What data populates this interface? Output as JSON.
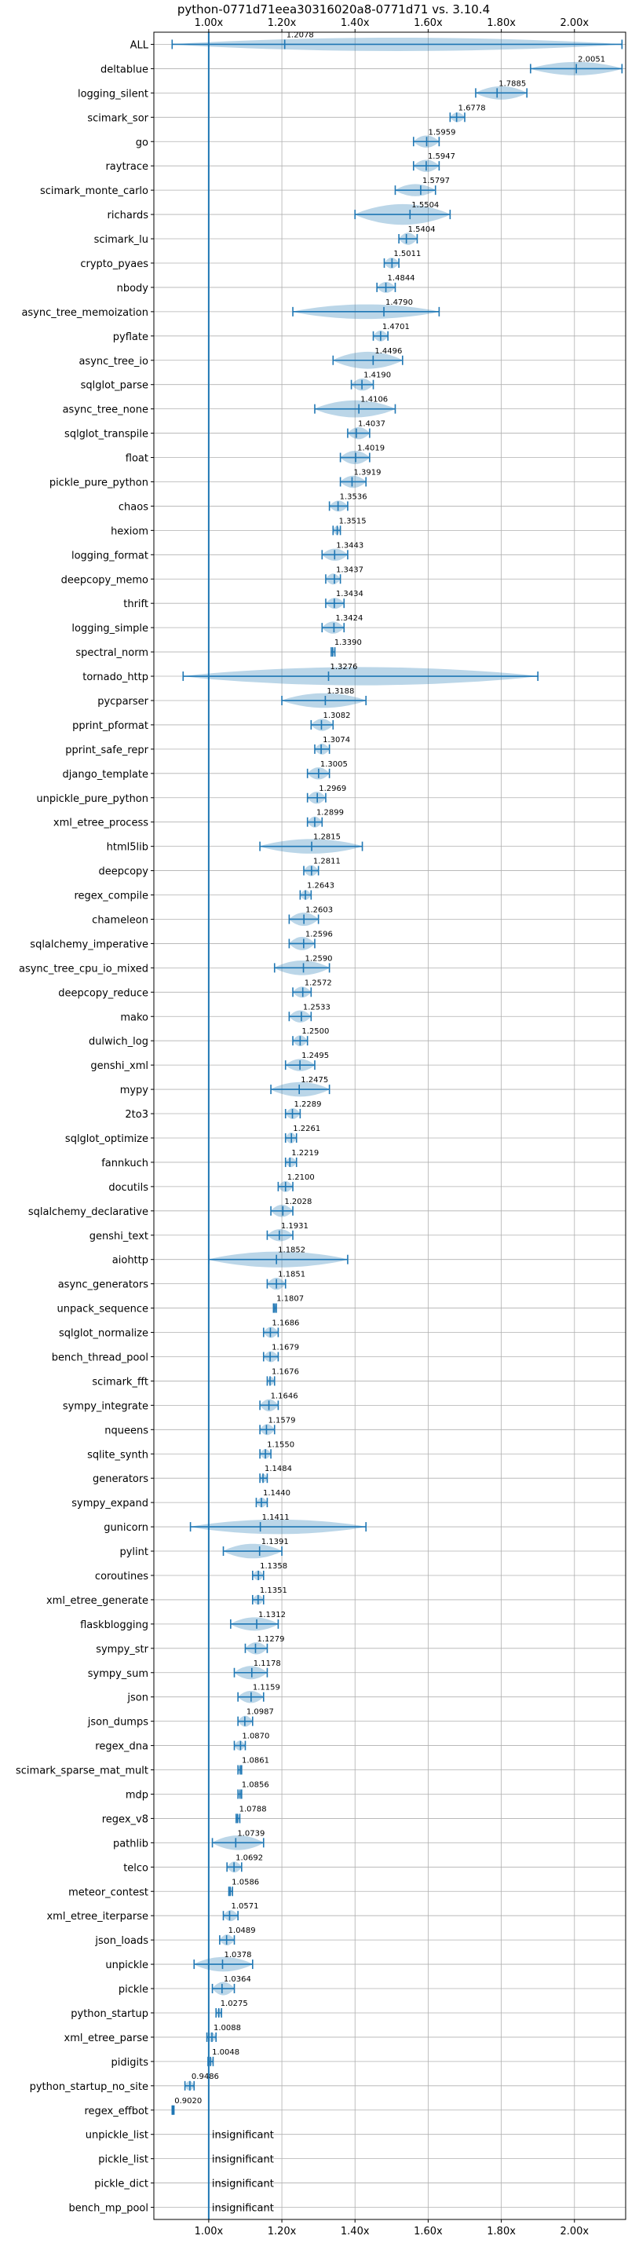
{
  "chart_data": {
    "type": "violin",
    "title": "python-0771d71eea30316020a8-0771d71 vs. 3.10.4",
    "xlim": [
      0.85,
      2.14
    ],
    "x_ticks": [
      1.0,
      1.2,
      1.4,
      1.6,
      1.8,
      2.0
    ],
    "x_tick_labels": [
      "1.00x",
      "1.20x",
      "1.40x",
      "1.60x",
      "1.80x",
      "2.00x"
    ],
    "x_ticks_top_and_bottom": true,
    "reference_line": 1.0,
    "grid": true,
    "color": "#1f77b4",
    "benchmarks": [
      {
        "name": "ALL",
        "value": 1.2078,
        "label": "1.2078",
        "min": 0.9,
        "max": 2.13,
        "width": 0.55
      },
      {
        "name": "deltablue",
        "value": 2.0051,
        "label": "2.0051",
        "min": 1.88,
        "max": 2.13,
        "width": 0.55
      },
      {
        "name": "logging_silent",
        "value": 1.7885,
        "label": "1.7885",
        "min": 1.73,
        "max": 1.87,
        "width": 0.55
      },
      {
        "name": "scimark_sor",
        "value": 1.6778,
        "label": "1.6778",
        "min": 1.66,
        "max": 1.7,
        "width": 0.4
      },
      {
        "name": "go",
        "value": 1.5959,
        "label": "1.5959",
        "min": 1.56,
        "max": 1.63,
        "width": 0.5
      },
      {
        "name": "raytrace",
        "value": 1.5947,
        "label": "1.5947",
        "min": 1.56,
        "max": 1.63,
        "width": 0.5
      },
      {
        "name": "scimark_monte_carlo",
        "value": 1.5797,
        "label": "1.5797",
        "min": 1.51,
        "max": 1.62,
        "width": 0.5
      },
      {
        "name": "richards",
        "value": 1.5504,
        "label": "1.5504",
        "min": 1.4,
        "max": 1.66,
        "width": 0.85
      },
      {
        "name": "scimark_lu",
        "value": 1.5404,
        "label": "1.5404",
        "min": 1.52,
        "max": 1.57,
        "width": 0.5
      },
      {
        "name": "crypto_pyaes",
        "value": 1.5011,
        "label": "1.5011",
        "min": 1.48,
        "max": 1.52,
        "width": 0.45
      },
      {
        "name": "nbody",
        "value": 1.4844,
        "label": "1.4844",
        "min": 1.46,
        "max": 1.51,
        "width": 0.45
      },
      {
        "name": "async_tree_memoization",
        "value": 1.479,
        "label": "1.4790",
        "min": 1.23,
        "max": 1.63,
        "width": 0.6
      },
      {
        "name": "pyflate",
        "value": 1.4701,
        "label": "1.4701",
        "min": 1.45,
        "max": 1.49,
        "width": 0.45
      },
      {
        "name": "async_tree_io",
        "value": 1.4496,
        "label": "1.4496",
        "min": 1.34,
        "max": 1.53,
        "width": 0.7
      },
      {
        "name": "sqlglot_parse",
        "value": 1.419,
        "label": "1.4190",
        "min": 1.39,
        "max": 1.45,
        "width": 0.5
      },
      {
        "name": "async_tree_none",
        "value": 1.4106,
        "label": "1.4106",
        "min": 1.29,
        "max": 1.51,
        "width": 0.7
      },
      {
        "name": "sqlglot_transpile",
        "value": 1.4037,
        "label": "1.4037",
        "min": 1.38,
        "max": 1.44,
        "width": 0.5
      },
      {
        "name": "float",
        "value": 1.4019,
        "label": "1.4019",
        "min": 1.36,
        "max": 1.44,
        "width": 0.55
      },
      {
        "name": "pickle_pure_python",
        "value": 1.3919,
        "label": "1.3919",
        "min": 1.36,
        "max": 1.43,
        "width": 0.5
      },
      {
        "name": "chaos",
        "value": 1.3536,
        "label": "1.3536",
        "min": 1.33,
        "max": 1.38,
        "width": 0.45
      },
      {
        "name": "hexiom",
        "value": 1.3515,
        "label": "1.3515",
        "min": 1.34,
        "max": 1.36,
        "width": 0.35
      },
      {
        "name": "logging_format",
        "value": 1.3443,
        "label": "1.3443",
        "min": 1.31,
        "max": 1.38,
        "width": 0.5
      },
      {
        "name": "deepcopy_memo",
        "value": 1.3437,
        "label": "1.3437",
        "min": 1.32,
        "max": 1.36,
        "width": 0.45
      },
      {
        "name": "thrift",
        "value": 1.3434,
        "label": "1.3434",
        "min": 1.32,
        "max": 1.37,
        "width": 0.45
      },
      {
        "name": "logging_simple",
        "value": 1.3424,
        "label": "1.3424",
        "min": 1.31,
        "max": 1.37,
        "width": 0.5
      },
      {
        "name": "spectral_norm",
        "value": 1.339,
        "label": "1.3390",
        "min": 1.335,
        "max": 1.345,
        "width": 0.3
      },
      {
        "name": "tornado_http",
        "value": 1.3276,
        "label": "1.3276",
        "min": 0.93,
        "max": 1.9,
        "width": 0.75
      },
      {
        "name": "pycparser",
        "value": 1.3188,
        "label": "1.3188",
        "min": 1.2,
        "max": 1.43,
        "width": 0.6
      },
      {
        "name": "pprint_pformat",
        "value": 1.3082,
        "label": "1.3082",
        "min": 1.28,
        "max": 1.34,
        "width": 0.5
      },
      {
        "name": "pprint_safe_repr",
        "value": 1.3074,
        "label": "1.3074",
        "min": 1.29,
        "max": 1.33,
        "width": 0.45
      },
      {
        "name": "django_template",
        "value": 1.3005,
        "label": "1.3005",
        "min": 1.27,
        "max": 1.33,
        "width": 0.5
      },
      {
        "name": "unpickle_pure_python",
        "value": 1.2969,
        "label": "1.2969",
        "min": 1.27,
        "max": 1.32,
        "width": 0.5
      },
      {
        "name": "xml_etree_process",
        "value": 1.2899,
        "label": "1.2899",
        "min": 1.27,
        "max": 1.31,
        "width": 0.45
      },
      {
        "name": "html5lib",
        "value": 1.2815,
        "label": "1.2815",
        "min": 1.14,
        "max": 1.42,
        "width": 0.6
      },
      {
        "name": "deepcopy",
        "value": 1.2811,
        "label": "1.2811",
        "min": 1.26,
        "max": 1.3,
        "width": 0.45
      },
      {
        "name": "regex_compile",
        "value": 1.2643,
        "label": "1.2643",
        "min": 1.25,
        "max": 1.28,
        "width": 0.4
      },
      {
        "name": "chameleon",
        "value": 1.2603,
        "label": "1.2603",
        "min": 1.22,
        "max": 1.3,
        "width": 0.55
      },
      {
        "name": "sqlalchemy_imperative",
        "value": 1.2596,
        "label": "1.2596",
        "min": 1.22,
        "max": 1.29,
        "width": 0.55
      },
      {
        "name": "async_tree_cpu_io_mixed",
        "value": 1.259,
        "label": "1.2590",
        "min": 1.18,
        "max": 1.33,
        "width": 0.6
      },
      {
        "name": "deepcopy_reduce",
        "value": 1.2572,
        "label": "1.2572",
        "min": 1.23,
        "max": 1.28,
        "width": 0.45
      },
      {
        "name": "mako",
        "value": 1.2533,
        "label": "1.2533",
        "min": 1.22,
        "max": 1.28,
        "width": 0.5
      },
      {
        "name": "dulwich_log",
        "value": 1.25,
        "label": "1.2500",
        "min": 1.23,
        "max": 1.27,
        "width": 0.45
      },
      {
        "name": "genshi_xml",
        "value": 1.2495,
        "label": "1.2495",
        "min": 1.21,
        "max": 1.29,
        "width": 0.5
      },
      {
        "name": "mypy",
        "value": 1.2475,
        "label": "1.2475",
        "min": 1.17,
        "max": 1.33,
        "width": 0.6
      },
      {
        "name": "2to3",
        "value": 1.2289,
        "label": "1.2289",
        "min": 1.21,
        "max": 1.25,
        "width": 0.45
      },
      {
        "name": "sqlglot_optimize",
        "value": 1.2261,
        "label": "1.2261",
        "min": 1.21,
        "max": 1.24,
        "width": 0.45
      },
      {
        "name": "fannkuch",
        "value": 1.2219,
        "label": "1.2219",
        "min": 1.21,
        "max": 1.24,
        "width": 0.4
      },
      {
        "name": "docutils",
        "value": 1.21,
        "label": "1.2100",
        "min": 1.19,
        "max": 1.23,
        "width": 0.45
      },
      {
        "name": "sqlalchemy_declarative",
        "value": 1.2028,
        "label": "1.2028",
        "min": 1.17,
        "max": 1.23,
        "width": 0.5
      },
      {
        "name": "genshi_text",
        "value": 1.1931,
        "label": "1.1931",
        "min": 1.16,
        "max": 1.23,
        "width": 0.5
      },
      {
        "name": "aiohttp",
        "value": 1.1852,
        "label": "1.1852",
        "min": 1.0,
        "max": 1.38,
        "width": 0.65
      },
      {
        "name": "async_generators",
        "value": 1.1851,
        "label": "1.1851",
        "min": 1.16,
        "max": 1.21,
        "width": 0.5
      },
      {
        "name": "unpack_sequence",
        "value": 1.1807,
        "label": "1.1807",
        "min": 1.177,
        "max": 1.185,
        "width": 0.3
      },
      {
        "name": "sqlglot_normalize",
        "value": 1.1686,
        "label": "1.1686",
        "min": 1.15,
        "max": 1.19,
        "width": 0.45
      },
      {
        "name": "bench_thread_pool",
        "value": 1.1679,
        "label": "1.1679",
        "min": 1.15,
        "max": 1.19,
        "width": 0.45
      },
      {
        "name": "scimark_fft",
        "value": 1.1676,
        "label": "1.1676",
        "min": 1.16,
        "max": 1.18,
        "width": 0.35
      },
      {
        "name": "sympy_integrate",
        "value": 1.1646,
        "label": "1.1646",
        "min": 1.14,
        "max": 1.19,
        "width": 0.5
      },
      {
        "name": "nqueens",
        "value": 1.1579,
        "label": "1.1579",
        "min": 1.14,
        "max": 1.18,
        "width": 0.45
      },
      {
        "name": "sqlite_synth",
        "value": 1.155,
        "label": "1.1550",
        "min": 1.14,
        "max": 1.17,
        "width": 0.4
      },
      {
        "name": "generators",
        "value": 1.1484,
        "label": "1.1484",
        "min": 1.14,
        "max": 1.16,
        "width": 0.35
      },
      {
        "name": "sympy_expand",
        "value": 1.144,
        "label": "1.1440",
        "min": 1.13,
        "max": 1.16,
        "width": 0.4
      },
      {
        "name": "gunicorn",
        "value": 1.1411,
        "label": "1.1411",
        "min": 0.95,
        "max": 1.43,
        "width": 0.6
      },
      {
        "name": "pylint",
        "value": 1.1391,
        "label": "1.1391",
        "min": 1.04,
        "max": 1.2,
        "width": 0.6
      },
      {
        "name": "coroutines",
        "value": 1.1358,
        "label": "1.1358",
        "min": 1.12,
        "max": 1.15,
        "width": 0.4
      },
      {
        "name": "xml_etree_generate",
        "value": 1.1351,
        "label": "1.1351",
        "min": 1.12,
        "max": 1.15,
        "width": 0.4
      },
      {
        "name": "flaskblogging",
        "value": 1.1312,
        "label": "1.1312",
        "min": 1.06,
        "max": 1.19,
        "width": 0.55
      },
      {
        "name": "sympy_str",
        "value": 1.1279,
        "label": "1.1279",
        "min": 1.1,
        "max": 1.16,
        "width": 0.5
      },
      {
        "name": "sympy_sum",
        "value": 1.1178,
        "label": "1.1178",
        "min": 1.07,
        "max": 1.16,
        "width": 0.55
      },
      {
        "name": "json",
        "value": 1.1159,
        "label": "1.1159",
        "min": 1.08,
        "max": 1.15,
        "width": 0.5
      },
      {
        "name": "json_dumps",
        "value": 1.0987,
        "label": "1.0987",
        "min": 1.08,
        "max": 1.12,
        "width": 0.45
      },
      {
        "name": "regex_dna",
        "value": 1.087,
        "label": "1.0870",
        "min": 1.07,
        "max": 1.1,
        "width": 0.4
      },
      {
        "name": "scimark_sparse_mat_mult",
        "value": 1.0861,
        "label": "1.0861",
        "min": 1.08,
        "max": 1.09,
        "width": 0.35
      },
      {
        "name": "mdp",
        "value": 1.0856,
        "label": "1.0856",
        "min": 1.08,
        "max": 1.09,
        "width": 0.35
      },
      {
        "name": "regex_v8",
        "value": 1.0788,
        "label": "1.0788",
        "min": 1.075,
        "max": 1.085,
        "width": 0.35
      },
      {
        "name": "pathlib",
        "value": 1.0739,
        "label": "1.0739",
        "min": 1.01,
        "max": 1.15,
        "width": 0.6
      },
      {
        "name": "telco",
        "value": 1.0692,
        "label": "1.0692",
        "min": 1.05,
        "max": 1.09,
        "width": 0.45
      },
      {
        "name": "meteor_contest",
        "value": 1.0586,
        "label": "1.0586",
        "min": 1.055,
        "max": 1.065,
        "width": 0.35
      },
      {
        "name": "xml_etree_iterparse",
        "value": 1.0571,
        "label": "1.0571",
        "min": 1.04,
        "max": 1.08,
        "width": 0.45
      },
      {
        "name": "json_loads",
        "value": 1.0489,
        "label": "1.0489",
        "min": 1.03,
        "max": 1.07,
        "width": 0.45
      },
      {
        "name": "unpickle",
        "value": 1.0378,
        "label": "1.0378",
        "min": 0.96,
        "max": 1.12,
        "width": 0.6
      },
      {
        "name": "pickle",
        "value": 1.0364,
        "label": "1.0364",
        "min": 1.01,
        "max": 1.07,
        "width": 0.55
      },
      {
        "name": "python_startup",
        "value": 1.0275,
        "label": "1.0275",
        "min": 1.02,
        "max": 1.035,
        "width": 0.35
      },
      {
        "name": "xml_etree_parse",
        "value": 1.0088,
        "label": "1.0088",
        "min": 0.995,
        "max": 1.02,
        "width": 0.4
      },
      {
        "name": "pidigits",
        "value": 1.0048,
        "label": "1.0048",
        "min": 0.998,
        "max": 1.012,
        "width": 0.35
      },
      {
        "name": "python_startup_no_site",
        "value": 0.9486,
        "label": "0.9486",
        "min": 0.935,
        "max": 0.96,
        "width": 0.4
      },
      {
        "name": "regex_effbot",
        "value": 0.902,
        "label": "0.9020",
        "min": 0.9,
        "max": 0.905,
        "width": 0.3
      },
      {
        "name": "unpickle_list",
        "value": null,
        "label": "insignificant"
      },
      {
        "name": "pickle_list",
        "value": null,
        "label": "insignificant"
      },
      {
        "name": "pickle_dict",
        "value": null,
        "label": "insignificant"
      },
      {
        "name": "bench_mp_pool",
        "value": null,
        "label": "insignificant"
      }
    ]
  }
}
